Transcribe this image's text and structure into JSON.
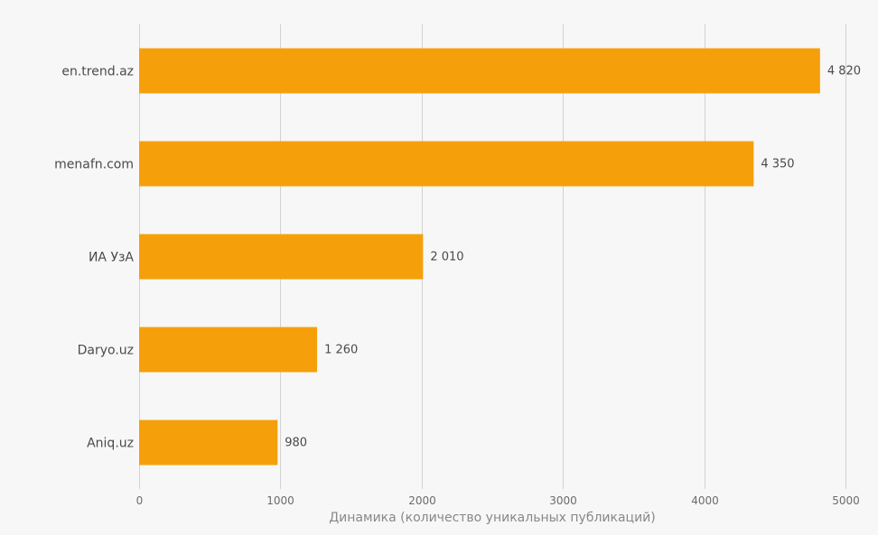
{
  "chart_data": {
    "type": "bar",
    "orientation": "horizontal",
    "categories": [
      "en.trend.az",
      "menafn.com",
      "ИА УзА",
      "Daryo.uz",
      "Aniq.uz"
    ],
    "values": [
      4820,
      4350,
      2010,
      1260,
      980
    ],
    "value_labels": [
      "4 820",
      "4 350",
      "2 010",
      "1 260",
      "980"
    ],
    "xlabel": "Динамика (количество уникальных публикаций)",
    "ylabel": "",
    "title": "",
    "xlim": [
      0,
      5000
    ],
    "xticks": [
      0,
      1000,
      2000,
      3000,
      4000,
      5000
    ],
    "xtick_labels": [
      "0",
      "1000",
      "2000",
      "3000",
      "4000",
      "5000"
    ],
    "grid": true,
    "bar_color": "#f5a00a",
    "background_color": "#f7f7f7"
  }
}
